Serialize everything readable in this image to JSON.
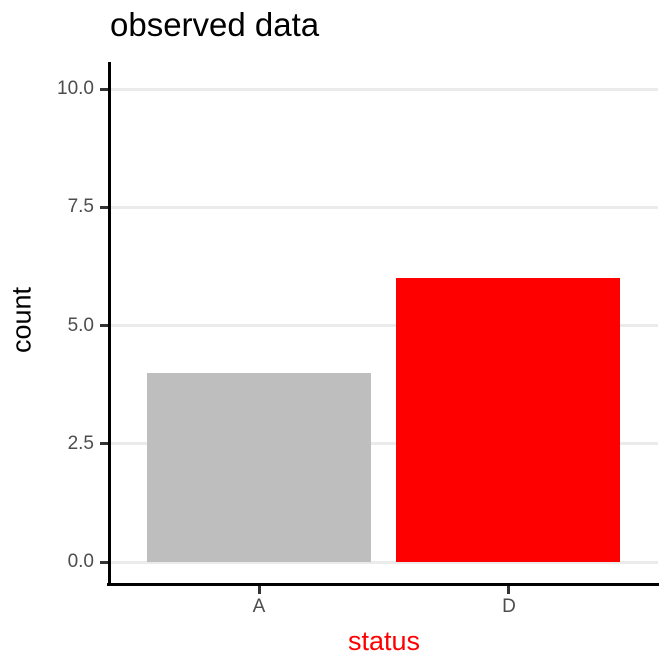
{
  "chart_data": {
    "type": "bar",
    "title": "observed data",
    "xlabel": "status",
    "ylabel": "count",
    "categories": [
      "A",
      "D"
    ],
    "values": [
      4,
      6
    ],
    "bar_colors": [
      "#BEBEBE",
      "#FF0000"
    ],
    "y_ticks": [
      0.0,
      2.5,
      5.0,
      7.5,
      10.0
    ],
    "y_tick_labels": [
      "0.0",
      "2.5",
      "5.0",
      "7.5",
      "10.0"
    ],
    "ylim": [
      0,
      10
    ],
    "grid": true,
    "legend": false,
    "bar_width_fraction": 0.9
  },
  "colors": {
    "background": "#FFFFFF",
    "gridline": "#EBEBEB",
    "axis_line": "#000000",
    "tick_mark": "#333333",
    "tick_label": "#4D4D4D",
    "title_color": "#000000",
    "x_axis_title_color": "#FF0000",
    "bar_gray": "#BEBEBE",
    "bar_red": "#FF0000"
  }
}
